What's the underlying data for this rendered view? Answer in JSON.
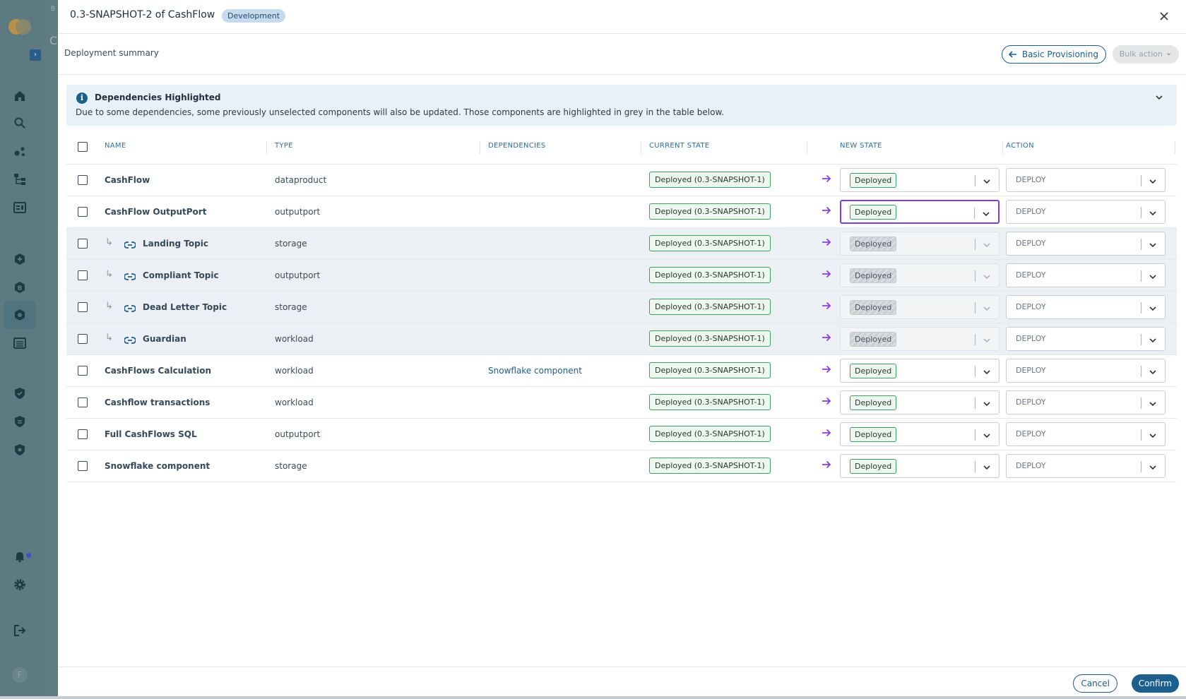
{
  "background": {
    "breadcrumb_fragment": "B",
    "heading_fragment": "C",
    "avatar_initial": "F"
  },
  "sidebar": {
    "icons": [
      "home-icon",
      "search-icon",
      "graph-icon",
      "hierarchy-icon",
      "dashboard-icon",
      "add-circle-icon",
      "badge-b-icon",
      "hexagon-icon",
      "list-icon",
      "shield-check-icon",
      "shield-icon",
      "shield-lock-icon",
      "bell-icon",
      "gear-icon",
      "logout-icon"
    ],
    "active": "hexagon-icon",
    "notification_dot_color": "#3b4fd0"
  },
  "modal": {
    "title": "0.3-SNAPSHOT-2 of CashFlow",
    "environment_badge": "Development",
    "subheader_label": "Deployment summary",
    "basic_provisioning_label": "Basic Provisioning",
    "bulk_action_label": "Bulk action"
  },
  "alert": {
    "title": "Dependencies Highlighted",
    "text": "Due to some dependencies, some previously unselected components will also be updated. Those components are highlighted in grey in the table below."
  },
  "table": {
    "headers": [
      "NAME",
      "TYPE",
      "DEPENDENCIES",
      "CURRENT STATE",
      "NEW STATE",
      "ACTION"
    ],
    "rows": [
      {
        "name": "CashFlow",
        "type": "dataproduct",
        "dependencies": "",
        "current_state": "Deployed (0.3-SNAPSHOT-1)",
        "new_state": "Deployed",
        "action": "DEPLOY",
        "highlighted": false,
        "child": false
      },
      {
        "name": "CashFlow OutputPort",
        "type": "outputport",
        "dependencies": "",
        "current_state": "Deployed (0.3-SNAPSHOT-1)",
        "new_state": "Deployed",
        "action": "DEPLOY",
        "highlighted": false,
        "child": false
      },
      {
        "name": "Landing Topic",
        "type": "storage",
        "dependencies": "",
        "current_state": "Deployed (0.3-SNAPSHOT-1)",
        "new_state": "Deployed",
        "action": "DEPLOY",
        "highlighted": true,
        "child": true
      },
      {
        "name": "Compliant Topic",
        "type": "outputport",
        "dependencies": "",
        "current_state": "Deployed (0.3-SNAPSHOT-1)",
        "new_state": "Deployed",
        "action": "DEPLOY",
        "highlighted": true,
        "child": true
      },
      {
        "name": "Dead Letter Topic",
        "type": "storage",
        "dependencies": "",
        "current_state": "Deployed (0.3-SNAPSHOT-1)",
        "new_state": "Deployed",
        "action": "DEPLOY",
        "highlighted": true,
        "child": true
      },
      {
        "name": "Guardian",
        "type": "workload",
        "dependencies": "",
        "current_state": "Deployed (0.3-SNAPSHOT-1)",
        "new_state": "Deployed",
        "action": "DEPLOY",
        "highlighted": true,
        "child": true
      },
      {
        "name": "CashFlows Calculation",
        "type": "workload",
        "dependencies": "Snowflake component",
        "current_state": "Deployed (0.3-SNAPSHOT-1)",
        "new_state": "Deployed",
        "action": "DEPLOY",
        "highlighted": false,
        "child": false
      },
      {
        "name": "Cashflow transactions",
        "type": "workload",
        "dependencies": "",
        "current_state": "Deployed (0.3-SNAPSHOT-1)",
        "new_state": "Deployed",
        "action": "DEPLOY",
        "highlighted": false,
        "child": false
      },
      {
        "name": "Full CashFlows SQL",
        "type": "outputport",
        "dependencies": "",
        "current_state": "Deployed (0.3-SNAPSHOT-1)",
        "new_state": "Deployed",
        "action": "DEPLOY",
        "highlighted": false,
        "child": false
      },
      {
        "name": "Snowflake component",
        "type": "storage",
        "dependencies": "",
        "current_state": "Deployed (0.3-SNAPSHOT-1)",
        "new_state": "Deployed",
        "action": "DEPLOY",
        "highlighted": false,
        "child": false
      }
    ],
    "focused_new_state_row": 1
  },
  "footer": {
    "cancel_label": "Cancel",
    "confirm_label": "Confirm"
  },
  "colors": {
    "primary": "#1c5e8c",
    "state_border": "#3aa060",
    "focus": "#7b3fe4",
    "highlight_row": "#eceff3",
    "transition_arrow": "#8b3fe0"
  }
}
